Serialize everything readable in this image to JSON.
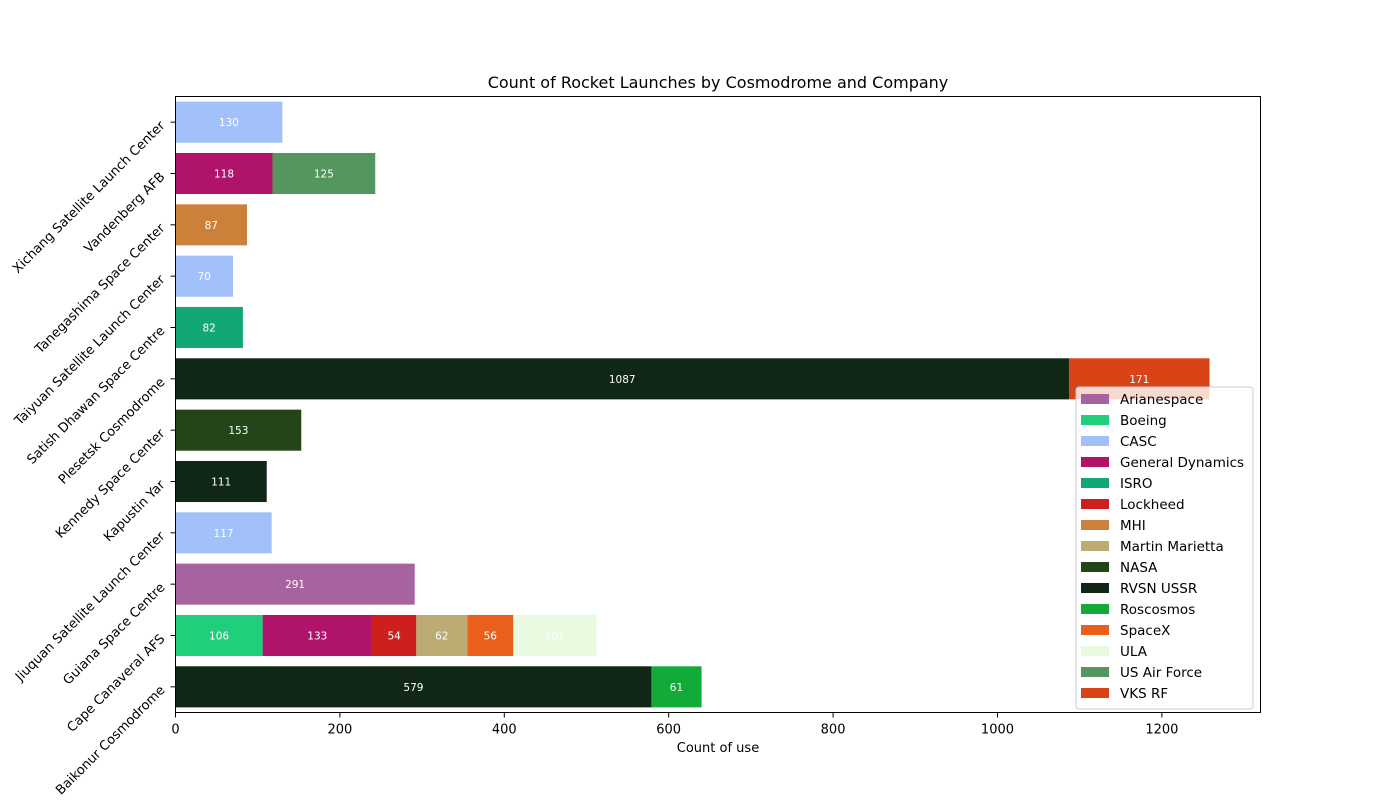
{
  "chart_data": {
    "type": "bar",
    "orientation": "horizontal",
    "stacked": true,
    "title": "Count of Rocket Launches by Cosmodrome and Company",
    "xlabel": "Count of use",
    "ylabel": "",
    "xlim": [
      0,
      1320
    ],
    "xticks": [
      0,
      200,
      400,
      600,
      800,
      1000,
      1200
    ],
    "grid": false,
    "legend_position": "lower-right",
    "categories": [
      "Baikonur Cosmodrome",
      "Cape Canaveral AFS",
      "Guiana Space Centre",
      "Jiuquan Satellite Launch Center",
      "Kapustin Yar",
      "Kennedy Space Center",
      "Plesetsk Cosmodrome",
      "Satish Dhawan Space Centre",
      "Taiyuan Satellite Launch Center",
      "Tanegashima Space Center",
      "Vandenberg AFB",
      "Xichang Satellite Launch Center"
    ],
    "series": [
      {
        "name": "Arianespace",
        "color": "#a6639f",
        "values": [
          0,
          0,
          291,
          0,
          0,
          0,
          0,
          0,
          0,
          0,
          0,
          0
        ]
      },
      {
        "name": "Boeing",
        "color": "#1fcf7b",
        "values": [
          0,
          106,
          0,
          0,
          0,
          0,
          0,
          0,
          0,
          0,
          0,
          0
        ]
      },
      {
        "name": "CASC",
        "color": "#a2c0fa",
        "values": [
          0,
          0,
          0,
          117,
          0,
          0,
          0,
          0,
          70,
          0,
          0,
          130
        ]
      },
      {
        "name": "General Dynamics",
        "color": "#b0136a",
        "values": [
          0,
          133,
          0,
          0,
          0,
          0,
          0,
          0,
          0,
          0,
          118,
          0
        ]
      },
      {
        "name": "ISRO",
        "color": "#11a876",
        "values": [
          0,
          0,
          0,
          0,
          0,
          0,
          0,
          82,
          0,
          0,
          0,
          0
        ]
      },
      {
        "name": "Lockheed",
        "color": "#cd1f1e",
        "values": [
          0,
          54,
          0,
          0,
          0,
          0,
          0,
          0,
          0,
          0,
          0,
          0
        ]
      },
      {
        "name": "MHI",
        "color": "#cb813a",
        "values": [
          0,
          0,
          0,
          0,
          0,
          0,
          0,
          0,
          0,
          87,
          0,
          0
        ]
      },
      {
        "name": "Martin Marietta",
        "color": "#bdab74",
        "values": [
          0,
          62,
          0,
          0,
          0,
          0,
          0,
          0,
          0,
          0,
          0,
          0
        ]
      },
      {
        "name": "NASA",
        "color": "#244518",
        "values": [
          0,
          0,
          0,
          0,
          0,
          153,
          0,
          0,
          0,
          0,
          0,
          0
        ]
      },
      {
        "name": "RVSN USSR",
        "color": "#102616",
        "values": [
          579,
          0,
          0,
          0,
          111,
          0,
          1087,
          0,
          0,
          0,
          0,
          0
        ]
      },
      {
        "name": "Roscosmos",
        "color": "#12aa38",
        "values": [
          61,
          0,
          0,
          0,
          0,
          0,
          0,
          0,
          0,
          0,
          0,
          0
        ]
      },
      {
        "name": "SpaceX",
        "color": "#e9601c",
        "values": [
          0,
          56,
          0,
          0,
          0,
          0,
          0,
          0,
          0,
          0,
          0,
          0
        ]
      },
      {
        "name": "ULA",
        "color": "#e8fbe0",
        "values": [
          0,
          101,
          0,
          0,
          0,
          0,
          0,
          0,
          0,
          0,
          0,
          0
        ]
      },
      {
        "name": "US Air Force",
        "color": "#55955e",
        "values": [
          0,
          0,
          0,
          0,
          0,
          0,
          0,
          0,
          0,
          0,
          125,
          0
        ]
      },
      {
        "name": "VKS RF",
        "color": "#d94417",
        "values": [
          0,
          0,
          0,
          0,
          0,
          0,
          171,
          0,
          0,
          0,
          0,
          0
        ]
      }
    ]
  }
}
